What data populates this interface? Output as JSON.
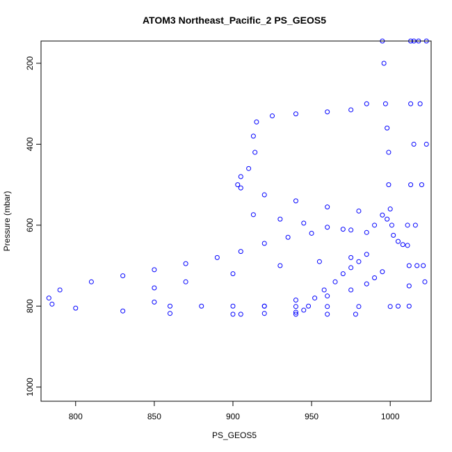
{
  "chart_data": {
    "type": "scatter",
    "title": "ATOM3 Northeast_Pacific_2 PS_GEOS5",
    "xlabel": "PS_GEOS5",
    "ylabel": "Pressure (mbar)",
    "xlim": [
      778,
      1026
    ],
    "ylim": [
      1035,
      145
    ],
    "y_reversed": true,
    "x_ticks": [
      800,
      850,
      900,
      950,
      1000
    ],
    "y_ticks": [
      200,
      400,
      600,
      800,
      1000
    ],
    "marker": "open-circle",
    "color": "#0000ff",
    "series": [
      {
        "values": [
          [
            995,
            145
          ],
          [
            996,
            200
          ],
          [
            997,
            300
          ],
          [
            998,
            360
          ],
          [
            999,
            420
          ],
          [
            999,
            500
          ],
          [
            1000,
            560
          ],
          [
            1001,
            600
          ],
          [
            1002,
            625
          ],
          [
            1005,
            640
          ],
          [
            1008,
            648
          ],
          [
            985,
            300
          ],
          [
            975,
            315
          ],
          [
            960,
            320
          ],
          [
            940,
            325
          ],
          [
            925,
            330
          ],
          [
            915,
            345
          ],
          [
            913,
            380
          ],
          [
            914,
            420
          ],
          [
            910,
            460
          ],
          [
            905,
            480
          ],
          [
            903,
            500
          ],
          [
            905,
            508
          ],
          [
            920,
            525
          ],
          [
            940,
            540
          ],
          [
            960,
            555
          ],
          [
            980,
            565
          ],
          [
            995,
            575
          ],
          [
            998,
            585
          ],
          [
            990,
            600
          ],
          [
            970,
            610
          ],
          [
            950,
            620
          ],
          [
            935,
            630
          ],
          [
            920,
            645
          ],
          [
            905,
            665
          ],
          [
            890,
            680
          ],
          [
            870,
            695
          ],
          [
            850,
            710
          ],
          [
            830,
            725
          ],
          [
            810,
            740
          ],
          [
            790,
            760
          ],
          [
            783,
            780
          ],
          [
            785,
            795
          ],
          [
            800,
            805
          ],
          [
            830,
            812
          ],
          [
            860,
            818
          ],
          [
            900,
            820
          ],
          [
            940,
            820
          ],
          [
            960,
            820
          ],
          [
            978,
            820
          ],
          [
            913,
            574
          ],
          [
            930,
            585
          ],
          [
            945,
            595
          ],
          [
            960,
            605
          ],
          [
            975,
            612
          ],
          [
            985,
            618
          ],
          [
            1005,
            800
          ],
          [
            1000,
            801
          ],
          [
            980,
            801
          ],
          [
            960,
            801
          ],
          [
            940,
            801
          ],
          [
            920,
            800
          ],
          [
            900,
            800
          ],
          [
            880,
            800
          ],
          [
            860,
            800
          ],
          [
            850,
            790
          ],
          [
            850,
            755
          ],
          [
            870,
            740
          ],
          [
            900,
            720
          ],
          [
            930,
            700
          ],
          [
            955,
            690
          ],
          [
            975,
            680
          ],
          [
            985,
            672
          ],
          [
            980,
            690
          ],
          [
            975,
            705
          ],
          [
            970,
            720
          ],
          [
            965,
            740
          ],
          [
            958,
            760
          ],
          [
            952,
            780
          ],
          [
            948,
            800
          ],
          [
            945,
            810
          ],
          [
            940,
            815
          ],
          [
            920,
            818
          ],
          [
            905,
            820
          ],
          [
            920,
            800
          ],
          [
            940,
            785
          ],
          [
            960,
            775
          ],
          [
            975,
            760
          ],
          [
            985,
            745
          ],
          [
            990,
            730
          ],
          [
            995,
            715
          ],
          [
            1011,
            600
          ],
          [
            1011,
            650
          ],
          [
            1012,
            700
          ],
          [
            1012,
            750
          ],
          [
            1012,
            800
          ],
          [
            1013,
            145
          ],
          [
            1013,
            300
          ],
          [
            1013,
            500
          ],
          [
            1015,
            145
          ],
          [
            1015,
            400
          ],
          [
            1016,
            600
          ],
          [
            1017,
            700
          ],
          [
            1018,
            145
          ],
          [
            1019,
            300
          ],
          [
            1020,
            500
          ],
          [
            1021,
            700
          ],
          [
            1022,
            740
          ],
          [
            1023,
            145
          ],
          [
            1023,
            400
          ]
        ]
      }
    ]
  }
}
